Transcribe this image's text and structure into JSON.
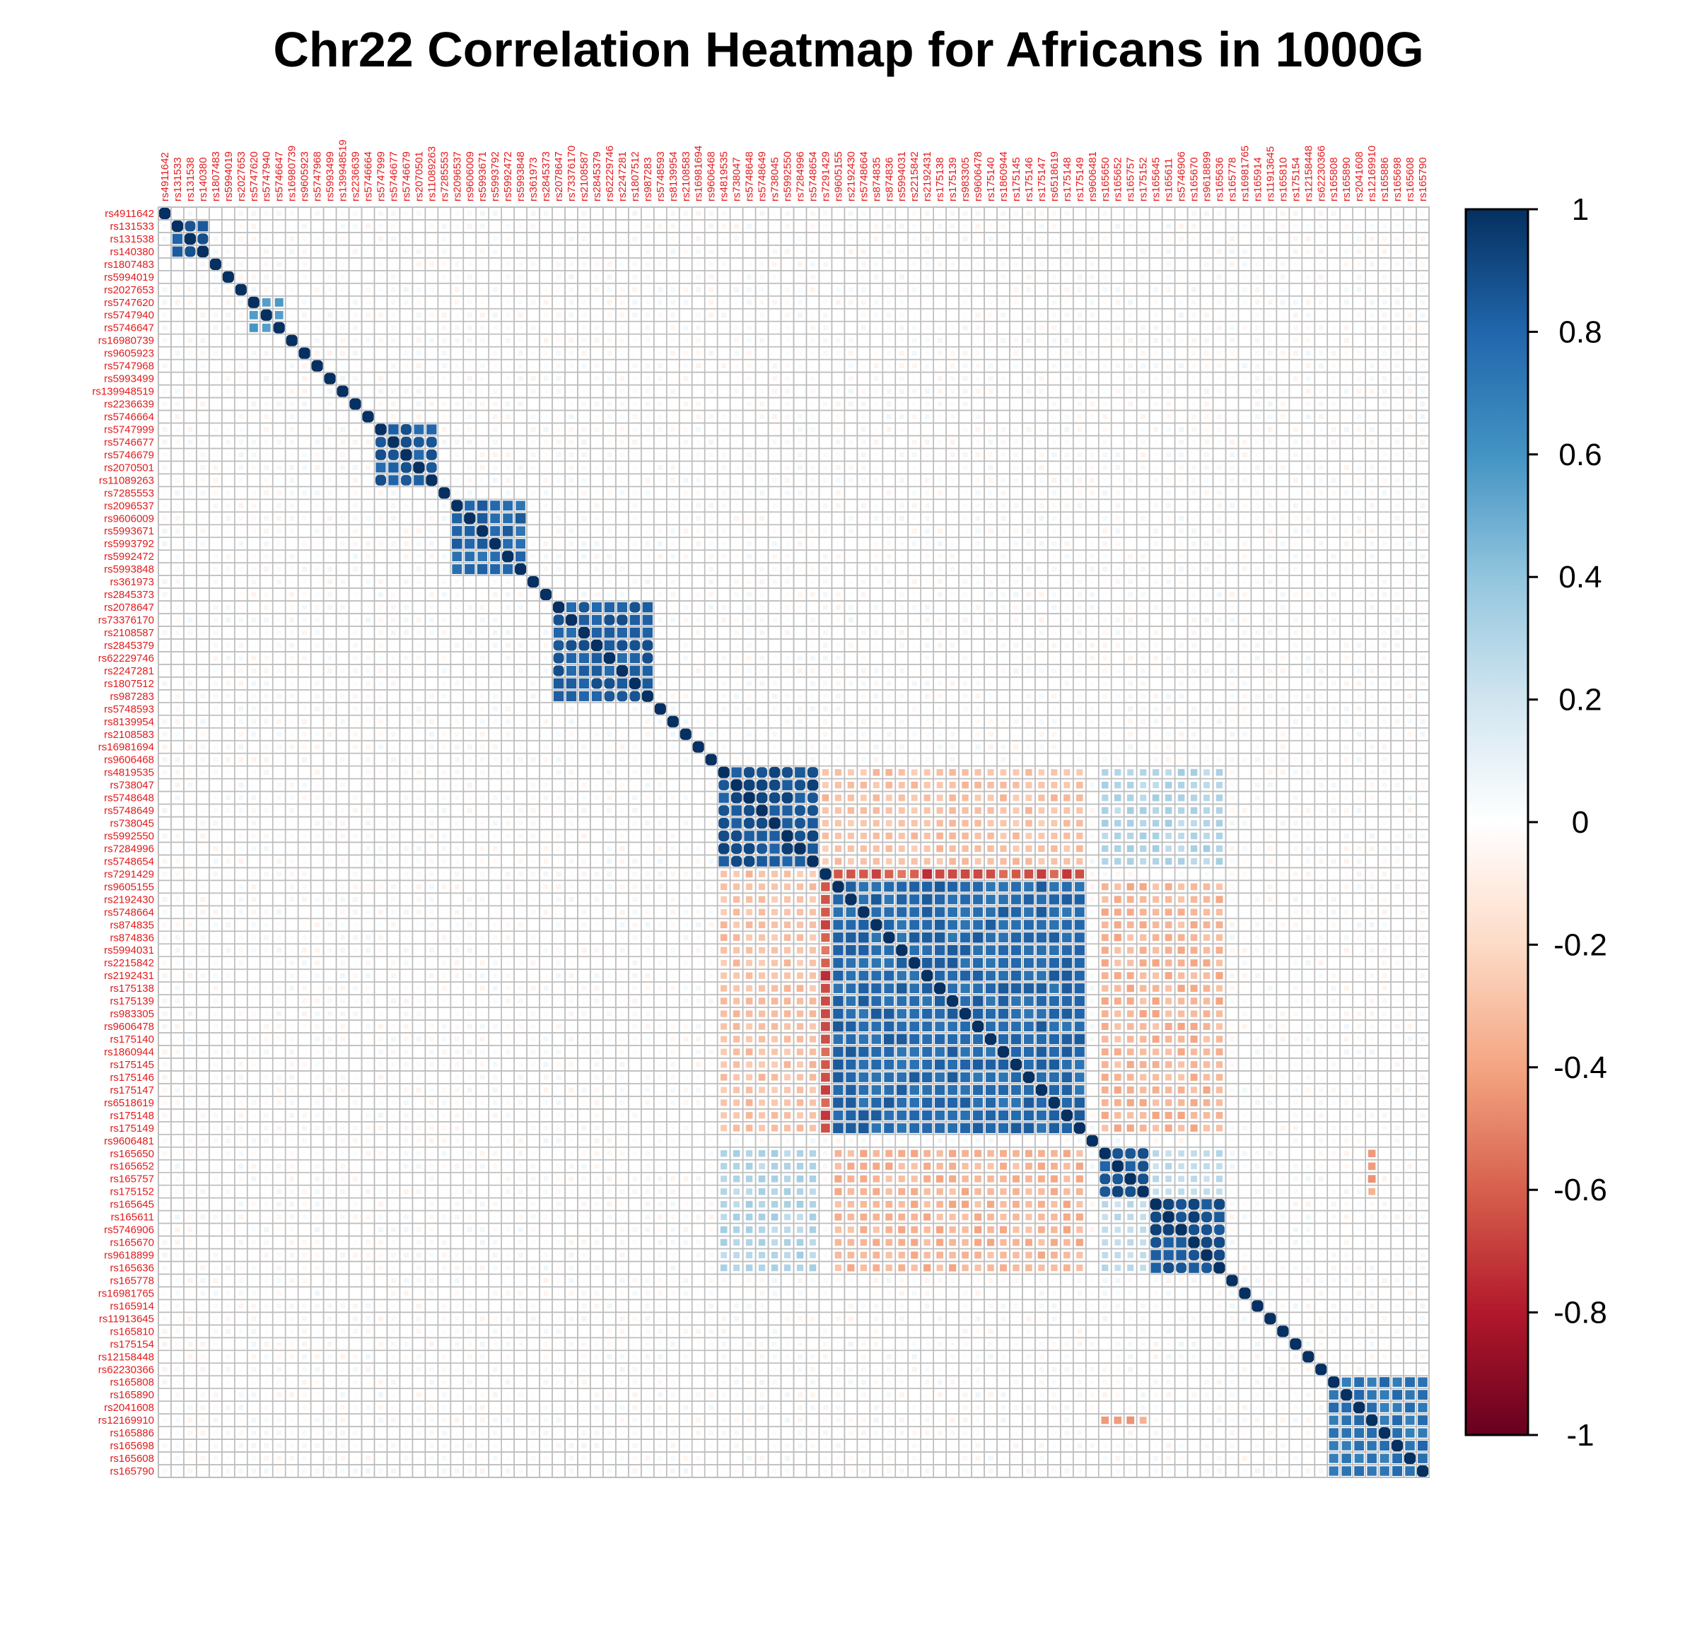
{
  "chart_data": {
    "type": "heatmap",
    "title": "Chr22 Correlation Heatmap for Africans in 1000G",
    "labels": [
      "rs4911642",
      "rs131533",
      "rs131538",
      "rs140380",
      "rs1807483",
      "rs5994019",
      "rs2027653",
      "rs5747620",
      "rs5747940",
      "rs5746647",
      "rs16980739",
      "rs9605923",
      "rs5747968",
      "rs5993499",
      "rs139948519",
      "rs2236639",
      "rs5746664",
      "rs5747999",
      "rs5746677",
      "rs5746679",
      "rs2070501",
      "rs11089263",
      "rs7285553",
      "rs2096537",
      "rs9606009",
      "rs5993671",
      "rs5993792",
      "rs5992472",
      "rs5993848",
      "rs361973",
      "rs2845373",
      "rs2078647",
      "rs73376170",
      "rs2108587",
      "rs2845379",
      "rs62229746",
      "rs2247281",
      "rs1807512",
      "rs987283",
      "rs5748593",
      "rs8139954",
      "rs2108583",
      "rs16981694",
      "rs9606468",
      "rs4819535",
      "rs738047",
      "rs5748648",
      "rs5748649",
      "rs738045",
      "rs5992550",
      "rs7284996",
      "rs5748654",
      "rs7291429",
      "rs9605155",
      "rs2192430",
      "rs5748664",
      "rs874835",
      "rs874836",
      "rs5994031",
      "rs2215842",
      "rs2192431",
      "rs175138",
      "rs175139",
      "rs983305",
      "rs9606478",
      "rs175140",
      "rs1860944",
      "rs175145",
      "rs175146",
      "rs175147",
      "rs6518619",
      "rs175148",
      "rs175149",
      "rs9606481",
      "rs165650",
      "rs165652",
      "rs165757",
      "rs175152",
      "rs165645",
      "rs165611",
      "rs5746906",
      "rs165670",
      "rs9618899",
      "rs165636",
      "rs165778",
      "rs16981765",
      "rs165914",
      "rs11913645",
      "rs165810",
      "rs175154",
      "rs12158448",
      "rs62230366",
      "rs165808",
      "rs165890",
      "rs2041608",
      "rs12169910",
      "rs165886",
      "rs165698",
      "rs165608",
      "rs165790"
    ],
    "blocks": [
      {
        "from": 1,
        "to": 3,
        "r": 0.95
      },
      {
        "from": 7,
        "to": 9,
        "r": 0.6
      },
      {
        "from": 17,
        "to": 21,
        "r": 0.9
      },
      {
        "from": 23,
        "to": 28,
        "r": 0.85
      },
      {
        "from": 31,
        "to": 38,
        "r": 0.9
      },
      {
        "from": 44,
        "to": 51,
        "r": 0.95
      },
      {
        "from": 53,
        "to": 72,
        "r": 0.85
      },
      {
        "from": 74,
        "to": 77,
        "r": 0.95
      },
      {
        "from": 78,
        "to": 83,
        "r": 0.95
      },
      {
        "from": 92,
        "to": 99,
        "r": 0.8
      }
    ],
    "cross_blocks": [
      {
        "rows": [
          44,
          51
        ],
        "cols": [
          52,
          72
        ],
        "r": -0.35
      },
      {
        "rows": [
          52,
          52
        ],
        "cols": [
          53,
          72
        ],
        "r": -0.75
      },
      {
        "rows": [
          53,
          72
        ],
        "cols": [
          74,
          83
        ],
        "r": -0.4
      },
      {
        "rows": [
          44,
          51
        ],
        "cols": [
          74,
          83
        ],
        "r": 0.35
      },
      {
        "rows": [
          74,
          77
        ],
        "cols": [
          95,
          95
        ],
        "r": -0.5
      },
      {
        "rows": [
          74,
          77
        ],
        "cols": [
          78,
          83
        ],
        "r": 0.3
      }
    ],
    "colorbar": {
      "ticks": [
        1,
        0.8,
        0.6,
        0.4,
        0.2,
        0,
        -0.2,
        -0.4,
        -0.6,
        -0.8,
        -1
      ],
      "tick_labels": [
        "1",
        "0.8",
        "0.6",
        "0.4",
        "0.2",
        "0",
        "-0.2",
        "-0.4",
        "-0.6",
        "-0.8",
        "-1"
      ],
      "range": [
        -1,
        1
      ],
      "colors": [
        "#67001f",
        "#b2182b",
        "#d6604d",
        "#f4a582",
        "#fddbc7",
        "#ffffff",
        "#d1e5f0",
        "#92c5de",
        "#4393c3",
        "#2166ac",
        "#053061"
      ]
    },
    "label_color": "#e41a1c",
    "grid_color": "#bdbdbd"
  }
}
